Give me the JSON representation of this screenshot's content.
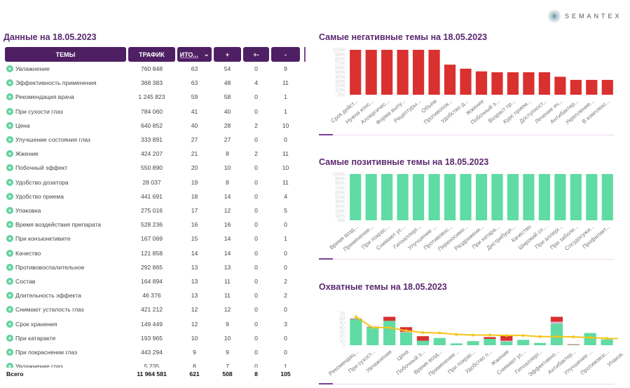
{
  "logo": {
    "text": "SEMANTEX"
  },
  "table": {
    "title": "Данные на 18.05.2023",
    "headers": {
      "topic": "ТЕМЫ",
      "traffic": "ТРАФИК",
      "total": "ИТО...",
      "pos": "+",
      "neu": "+-",
      "neg": "-"
    },
    "rows": [
      [
        "Увлажнение",
        "760 848",
        "63",
        "54",
        "0",
        "9"
      ],
      [
        "Эффективность применения",
        "368 383",
        "63",
        "48",
        "4",
        "11"
      ],
      [
        "Рекомендация врача",
        "1 245 823",
        "59",
        "58",
        "0",
        "1"
      ],
      [
        "При сухости глаз",
        "784 060",
        "41",
        "40",
        "0",
        "1"
      ],
      [
        "Цена",
        "640 852",
        "40",
        "28",
        "2",
        "10"
      ],
      [
        "Улучшение состояния глаз",
        "333 891",
        "27",
        "27",
        "0",
        "0"
      ],
      [
        "Жжение",
        "424 207",
        "21",
        "8",
        "2",
        "11"
      ],
      [
        "Побочный эффект",
        "550 890",
        "20",
        "10",
        "0",
        "10"
      ],
      [
        "Удобство дозатора",
        "28 037",
        "19",
        "8",
        "0",
        "11"
      ],
      [
        "Удобство приема",
        "441 691",
        "18",
        "14",
        "0",
        "4"
      ],
      [
        "Упаковка",
        "275 016",
        "17",
        "12",
        "0",
        "5"
      ],
      [
        "Время воздействия препарата",
        "528 236",
        "16",
        "16",
        "0",
        "0"
      ],
      [
        "При конъюнктивите",
        "167 069",
        "15",
        "14",
        "0",
        "1"
      ],
      [
        "Качество",
        "121 858",
        "14",
        "14",
        "0",
        "0"
      ],
      [
        "Противовоспалительное",
        "292 865",
        "13",
        "13",
        "0",
        "0"
      ],
      [
        "Состав",
        "164 894",
        "13",
        "11",
        "0",
        "2"
      ],
      [
        "Длительность эффекта",
        "46 376",
        "13",
        "11",
        "0",
        "2"
      ],
      [
        "Снимают усталость глаз",
        "421 212",
        "12",
        "12",
        "0",
        "0"
      ],
      [
        "Срок хранения",
        "149 449",
        "12",
        "9",
        "0",
        "3"
      ],
      [
        "При катаракте",
        "193 965",
        "10",
        "10",
        "0",
        "0"
      ],
      [
        "При покраснении глаз",
        "443 294",
        "9",
        "9",
        "0",
        "0"
      ],
      [
        "Увлажнение глаз",
        "5 235",
        "8",
        "7",
        "0",
        "1"
      ]
    ],
    "totals": [
      "Всего",
      "11 964 581",
      "621",
      "508",
      "8",
      "105"
    ]
  },
  "colors": {
    "header": "#4e1f63",
    "positive": "#5fdba3",
    "negative": "#d93030",
    "neutral": "#d9b8d0",
    "line": "#f5c518",
    "plus_icon": "#5fd19b"
  },
  "chart_data": [
    {
      "type": "bar",
      "title": "Самые негативные темы на 18.05.2023",
      "ylim": [
        0,
        100
      ],
      "yticks": [
        "0%",
        "10%",
        "20%",
        "30%",
        "40%",
        "50%",
        "60%",
        "70%",
        "80%",
        "90%",
        "100%"
      ],
      "categories": [
        "Срок дейст...",
        "Нужна конс...",
        "Аллергичес...",
        "Форма выпу...",
        "Рецептуры...",
        "Объем",
        "Противопок...",
        "Удобство д...",
        "Жжение",
        "Побочный э...",
        "Возраст пр...",
        "Курс прием...",
        "Доступност...",
        "Лечение яч...",
        "Антибактер...",
        "Укрепление...",
        "В комплекс..."
      ],
      "values": [
        100,
        100,
        100,
        100,
        100,
        100,
        67,
        58,
        52,
        50,
        50,
        50,
        50,
        40,
        33,
        33,
        33
      ],
      "color": "#d93030"
    },
    {
      "type": "bar",
      "title": "Самые позитивные темы на 18.05.2023",
      "ylim": [
        0,
        100
      ],
      "yticks": [
        "0%",
        "10%",
        "20%",
        "30%",
        "40%",
        "50%",
        "60%",
        "70%",
        "80%",
        "90%",
        "100%"
      ],
      "categories": [
        "Время возд...",
        "Применение...",
        "При покрас...",
        "Снимают ус...",
        "Гипоаллерг...",
        "Улучшение ...",
        "Противовос...",
        "Переносимо...",
        "Раздражени...",
        "При катара...",
        "Дистрибуци...",
        "Качество",
        "Широкий сп...",
        "При аллерг...",
        "При заболе...",
        "Сосудосужи...",
        "Профилакт..."
      ],
      "values": [
        100,
        100,
        100,
        100,
        100,
        100,
        100,
        100,
        100,
        100,
        100,
        100,
        100,
        100,
        100,
        100,
        100
      ],
      "color": "#5fdba3"
    },
    {
      "type": "bar",
      "stacked": true,
      "title": "Охватные темы на 18.05.2023",
      "ylim": [
        0,
        70
      ],
      "yticks": [
        "0",
        "10",
        "20",
        "30",
        "40",
        "50",
        "60",
        "70"
      ],
      "categories": [
        "Рекомендац...",
        "При сухост...",
        "Увлажнение",
        "Цена",
        "Побочный э...",
        "Время возд...",
        "Применение...",
        "При покрас...",
        "Удобство п...",
        "Жжение",
        "Снимают ус...",
        "Гипоаллерг...",
        "Эффективно...",
        "Антибактер...",
        "Улучшение ...",
        "Противовос...",
        "Упаков...",
        "Пер..."
      ],
      "series": [
        {
          "key": "+",
          "values": [
            58,
            40,
            54,
            28,
            10,
            16,
            4,
            9,
            14,
            8,
            12,
            5,
            48,
            1,
            27,
            13,
            null,
            null
          ],
          "color": "#5fdba3"
        },
        {
          "key": "+-",
          "values": [
            0,
            0,
            0,
            2,
            0,
            0,
            0,
            0,
            0,
            2,
            0,
            0,
            4,
            0,
            0,
            0,
            null,
            null
          ],
          "color": "#d9b8d0"
        },
        {
          "key": "-",
          "values": [
            1,
            1,
            9,
            10,
            10,
            0,
            0,
            0,
            4,
            11,
            0,
            0,
            11,
            1,
            0,
            0,
            null,
            null
          ],
          "color": "#d93030"
        }
      ],
      "line": {
        "values": [
          63,
          39,
          39,
          32,
          28,
          27,
          24,
          22.5,
          22.5,
          21.5,
          21.5,
          19,
          19,
          18.5,
          17,
          15
        ],
        "color": "#f5c518"
      }
    }
  ]
}
